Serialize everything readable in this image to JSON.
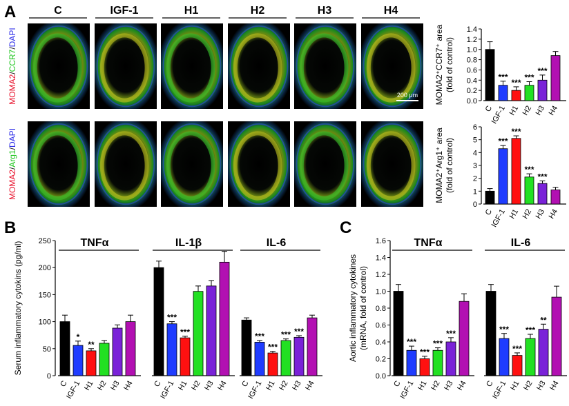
{
  "panel_labels": [
    "A",
    "B",
    "C"
  ],
  "micrograph": {
    "columns": [
      "C",
      "IGF-1",
      "H1",
      "H2",
      "H3",
      "H4"
    ],
    "row1_stain": [
      {
        "text": "MOMA2",
        "color": "#e8102a"
      },
      {
        "text": "/",
        "color": "#222222"
      },
      {
        "text": "CCR7",
        "color": "#19c419"
      },
      {
        "text": "/",
        "color": "#222222"
      },
      {
        "text": "DAPI",
        "color": "#2e2ee8"
      }
    ],
    "row2_stain": [
      {
        "text": "MOMA2",
        "color": "#e8102a"
      },
      {
        "text": "/",
        "color": "#222222"
      },
      {
        "text": "Arg1",
        "color": "#19c419"
      },
      {
        "text": "/",
        "color": "#222222"
      },
      {
        "text": "DAPI",
        "color": "#2e2ee8"
      }
    ],
    "scale_bar": "200 μm"
  },
  "colors": [
    "#000000",
    "#1f3cff",
    "#ff1010",
    "#22e022",
    "#7a22d8",
    "#b210b2"
  ],
  "chart_data": [
    {
      "id": "A-top",
      "type": "bar",
      "categories": [
        "C",
        "IGF-1",
        "H1",
        "H2",
        "H3",
        "H4"
      ],
      "values": [
        1.0,
        0.3,
        0.2,
        0.3,
        0.4,
        0.88
      ],
      "errors": [
        0.15,
        0.08,
        0.07,
        0.07,
        0.1,
        0.08
      ],
      "significance": [
        "",
        "***",
        "***",
        "***",
        "***",
        ""
      ],
      "ylabel": [
        "MOMA2⁺CCR7⁺ area",
        "(fold of control)"
      ],
      "ylim": [
        0,
        1.4
      ],
      "yticks": [
        "0.0",
        "0.2",
        "0.4",
        "0.6",
        "0.8",
        "1.0",
        "1.2",
        "1.4"
      ]
    },
    {
      "id": "A-bottom",
      "type": "bar",
      "categories": [
        "C",
        "IGF-1",
        "H1",
        "H2",
        "H3",
        "H4"
      ],
      "values": [
        1.0,
        4.3,
        5.1,
        2.1,
        1.6,
        1.1
      ],
      "errors": [
        0.2,
        0.25,
        0.2,
        0.25,
        0.2,
        0.2
      ],
      "significance": [
        "",
        "***",
        "***",
        "***",
        "***",
        ""
      ],
      "ylabel": [
        "MOMA2⁺Arg1⁺ area",
        "(fold of control)"
      ],
      "ylim": [
        0,
        6
      ],
      "yticks": [
        "0",
        "1",
        "2",
        "3",
        "4",
        "5",
        "6"
      ]
    },
    {
      "id": "B",
      "type": "bar",
      "group_titles": [
        "TNFα",
        "IL-1β",
        "IL-6"
      ],
      "categories": [
        "C",
        "IGF-1",
        "H1",
        "H2",
        "H3",
        "H4"
      ],
      "groups": [
        {
          "title": "TNFα",
          "values": [
            100,
            56,
            46,
            60,
            88,
            100
          ],
          "errors": [
            12,
            8,
            4,
            5,
            6,
            12
          ],
          "significance": [
            "",
            "*",
            "**",
            "",
            "",
            ""
          ]
        },
        {
          "title": "IL-1β",
          "values": [
            200,
            96,
            70,
            156,
            166,
            210
          ],
          "errors": [
            12,
            4,
            3,
            10,
            10,
            20
          ],
          "significance": [
            "",
            "***",
            "***",
            "",
            "",
            ""
          ]
        },
        {
          "title": "IL-6",
          "values": [
            103,
            62,
            42,
            65,
            71,
            107
          ],
          "errors": [
            4,
            3,
            3,
            3,
            3,
            5
          ],
          "significance": [
            "",
            "***",
            "***",
            "***",
            "***",
            ""
          ]
        }
      ],
      "ylabel": "Serum inflammatory cytokins (pg/ml)",
      "ylim": [
        0,
        250
      ],
      "yticks": [
        "0",
        "50",
        "100",
        "150",
        "200",
        "250"
      ]
    },
    {
      "id": "C",
      "type": "bar",
      "group_titles": [
        "TNFα",
        "IL-6"
      ],
      "categories": [
        "C",
        "IGF-1",
        "H1",
        "H2",
        "H3",
        "H4"
      ],
      "groups": [
        {
          "title": "TNFα",
          "values": [
            1.0,
            0.3,
            0.2,
            0.3,
            0.4,
            0.88
          ],
          "errors": [
            0.08,
            0.05,
            0.03,
            0.03,
            0.05,
            0.09
          ],
          "significance": [
            "",
            "***",
            "***",
            "***",
            "***",
            ""
          ]
        },
        {
          "title": "IL-6",
          "values": [
            1.0,
            0.44,
            0.24,
            0.44,
            0.55,
            0.93
          ],
          "errors": [
            0.08,
            0.06,
            0.03,
            0.05,
            0.06,
            0.13
          ],
          "significance": [
            "",
            "***",
            "***",
            "***",
            "**",
            ""
          ]
        }
      ],
      "ylabel": [
        "Aortic inflammatory cytokines",
        "(mRNA, fold of control)"
      ],
      "ylim": [
        0,
        1.6
      ],
      "yticks": [
        "0.0",
        "0.2",
        "0.4",
        "0.6",
        "0.8",
        "1.0",
        "1.2",
        "1.4",
        "1.6"
      ]
    }
  ]
}
